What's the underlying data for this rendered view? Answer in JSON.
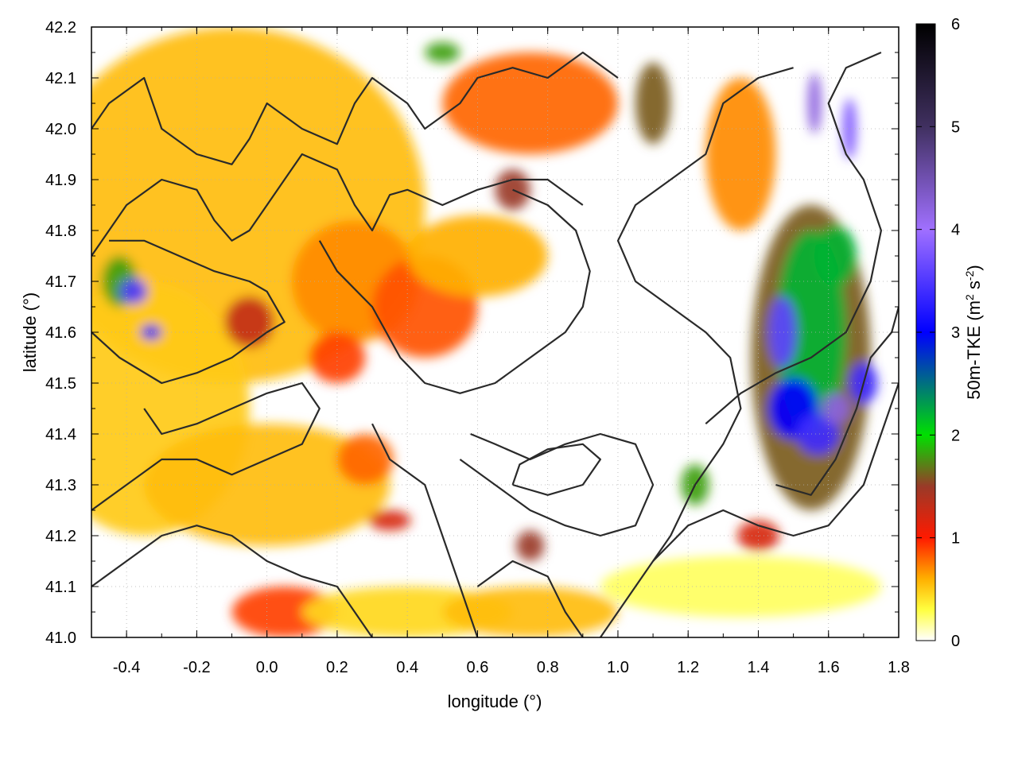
{
  "chart_data": {
    "type": "heatmap",
    "title": "",
    "xlabel": "longitude (°)",
    "ylabel": "latitude (°)",
    "xlim": [
      -0.5,
      1.8
    ],
    "ylim": [
      41.0,
      42.2
    ],
    "x_ticks": [
      "-0.4",
      "-0.2",
      "0.0",
      "0.2",
      "0.4",
      "0.6",
      "0.8",
      "1.0",
      "1.2",
      "1.4",
      "1.6",
      "1.8"
    ],
    "x_tick_values": [
      -0.4,
      -0.2,
      0.0,
      0.2,
      0.4,
      0.6,
      0.8,
      1.0,
      1.2,
      1.4,
      1.6,
      1.8
    ],
    "y_ticks": [
      "41.0",
      "41.1",
      "41.2",
      "41.3",
      "41.4",
      "41.5",
      "41.6",
      "41.7",
      "41.8",
      "41.9",
      "42.0",
      "42.1",
      "42.2"
    ],
    "y_tick_values": [
      41.0,
      41.1,
      41.2,
      41.3,
      41.4,
      41.5,
      41.6,
      41.7,
      41.8,
      41.9,
      42.0,
      42.1,
      42.2
    ],
    "grid": true,
    "colorbar": {
      "label_main": "50m-TKE (m",
      "label_sup1": "2",
      "label_mid": " s",
      "label_sup2": "-2",
      "label_end": ")",
      "range": [
        0,
        6
      ],
      "ticks": [
        "0",
        "1",
        "2",
        "3",
        "4",
        "5",
        "6"
      ],
      "tick_values": [
        0,
        1,
        2,
        3,
        4,
        5,
        6
      ],
      "colors": [
        {
          "v": 0.0,
          "c": "#ffffff"
        },
        {
          "v": 0.3,
          "c": "#ffff40"
        },
        {
          "v": 0.6,
          "c": "#ffb000"
        },
        {
          "v": 1.0,
          "c": "#ff1a00"
        },
        {
          "v": 1.5,
          "c": "#9a3a28"
        },
        {
          "v": 2.0,
          "c": "#00e000"
        },
        {
          "v": 3.0,
          "c": "#0000ff"
        },
        {
          "v": 4.0,
          "c": "#a070ff"
        },
        {
          "v": 5.0,
          "c": "#403060"
        },
        {
          "v": 6.0,
          "c": "#000000"
        }
      ]
    },
    "regions": [
      {
        "lon": -0.1,
        "lat": 41.85,
        "rlon": 0.55,
        "rlat": 0.35,
        "v": 0.55
      },
      {
        "lon": -0.35,
        "lat": 41.45,
        "rlon": 0.3,
        "rlat": 0.25,
        "v": 0.5
      },
      {
        "lon": 0.25,
        "lat": 41.7,
        "rlon": 0.18,
        "rlat": 0.12,
        "v": 0.7
      },
      {
        "lon": 0.45,
        "lat": 41.65,
        "rlon": 0.15,
        "rlat": 0.1,
        "v": 0.85
      },
      {
        "lon": 0.6,
        "lat": 41.75,
        "rlon": 0.2,
        "rlat": 0.08,
        "v": 0.6
      },
      {
        "lon": 0.0,
        "lat": 41.3,
        "rlon": 0.35,
        "rlat": 0.12,
        "v": 0.55
      },
      {
        "lon": 0.05,
        "lat": 41.05,
        "rlon": 0.15,
        "rlat": 0.05,
        "v": 0.9
      },
      {
        "lon": 0.2,
        "lat": 41.55,
        "rlon": 0.08,
        "rlat": 0.05,
        "v": 0.9
      },
      {
        "lon": -0.05,
        "lat": 41.62,
        "rlon": 0.07,
        "rlat": 0.05,
        "v": 1.3
      },
      {
        "lon": -0.42,
        "lat": 41.7,
        "rlon": 0.05,
        "rlat": 0.05,
        "v": 1.8
      },
      {
        "lon": -0.38,
        "lat": 41.68,
        "rlon": 0.04,
        "rlat": 0.025,
        "v": 3.5
      },
      {
        "lon": -0.33,
        "lat": 41.6,
        "rlon": 0.03,
        "rlat": 0.015,
        "v": 3.0
      },
      {
        "lon": 0.75,
        "lat": 42.05,
        "rlon": 0.25,
        "rlat": 0.1,
        "v": 0.8
      },
      {
        "lon": 1.1,
        "lat": 42.05,
        "rlon": 0.05,
        "rlat": 0.08,
        "v": 1.6
      },
      {
        "lon": 0.5,
        "lat": 42.15,
        "rlon": 0.05,
        "rlat": 0.02,
        "v": 1.8
      },
      {
        "lon": 0.7,
        "lat": 41.88,
        "rlon": 0.05,
        "rlat": 0.04,
        "v": 1.5
      },
      {
        "lon": 1.35,
        "lat": 41.95,
        "rlon": 0.1,
        "rlat": 0.15,
        "v": 0.7
      },
      {
        "lon": 1.55,
        "lat": 41.55,
        "rlon": 0.17,
        "rlat": 0.3,
        "v": 1.6
      },
      {
        "lon": 1.55,
        "lat": 41.6,
        "rlon": 0.1,
        "rlat": 0.2,
        "v": 2.2
      },
      {
        "lon": 1.5,
        "lat": 41.45,
        "rlon": 0.07,
        "rlat": 0.06,
        "v": 3.0
      },
      {
        "lon": 1.47,
        "lat": 41.6,
        "rlon": 0.04,
        "rlat": 0.07,
        "v": 3.6
      },
      {
        "lon": 1.57,
        "lat": 41.4,
        "rlon": 0.06,
        "rlat": 0.04,
        "v": 3.4
      },
      {
        "lon": 1.62,
        "lat": 41.45,
        "rlon": 0.04,
        "rlat": 0.03,
        "v": 4.2
      },
      {
        "lon": 1.56,
        "lat": 42.05,
        "rlon": 0.02,
        "rlat": 0.06,
        "v": 4.2
      },
      {
        "lon": 1.66,
        "lat": 42.0,
        "rlon": 0.02,
        "rlat": 0.06,
        "v": 3.8
      },
      {
        "lon": 1.62,
        "lat": 41.75,
        "rlon": 0.06,
        "rlat": 0.06,
        "v": 2.2
      },
      {
        "lon": 1.7,
        "lat": 41.5,
        "rlon": 0.04,
        "rlat": 0.04,
        "v": 3.4
      },
      {
        "lon": 1.22,
        "lat": 41.3,
        "rlon": 0.04,
        "rlat": 0.04,
        "v": 1.8
      },
      {
        "lon": 1.4,
        "lat": 41.2,
        "rlon": 0.06,
        "rlat": 0.03,
        "v": 1.2
      },
      {
        "lon": 0.35,
        "lat": 41.23,
        "rlon": 0.06,
        "rlat": 0.02,
        "v": 1.2
      },
      {
        "lon": 0.28,
        "lat": 41.35,
        "rlon": 0.08,
        "rlat": 0.05,
        "v": 0.8
      },
      {
        "lon": 0.75,
        "lat": 41.18,
        "rlon": 0.04,
        "rlat": 0.03,
        "v": 1.5
      },
      {
        "lon": 0.4,
        "lat": 41.05,
        "rlon": 0.3,
        "rlat": 0.05,
        "v": 0.45
      },
      {
        "lon": 0.75,
        "lat": 41.05,
        "rlon": 0.25,
        "rlat": 0.05,
        "v": 0.55
      },
      {
        "lon": 1.35,
        "lat": 41.1,
        "rlon": 0.4,
        "rlat": 0.06,
        "v": 0.25
      }
    ],
    "contours": [
      [
        [
          -0.5,
          42.0
        ],
        [
          -0.45,
          42.05
        ],
        [
          -0.35,
          42.1
        ],
        [
          -0.3,
          42.0
        ],
        [
          -0.2,
          41.95
        ],
        [
          -0.1,
          41.93
        ],
        [
          -0.05,
          41.98
        ],
        [
          0.0,
          42.05
        ],
        [
          0.1,
          42.0
        ],
        [
          0.2,
          41.97
        ],
        [
          0.25,
          42.05
        ],
        [
          0.3,
          42.1
        ],
        [
          0.4,
          42.05
        ],
        [
          0.45,
          42.0
        ],
        [
          0.55,
          42.05
        ],
        [
          0.6,
          42.1
        ],
        [
          0.7,
          42.12
        ],
        [
          0.8,
          42.1
        ],
        [
          0.9,
          42.15
        ],
        [
          1.0,
          42.1
        ]
      ],
      [
        [
          -0.5,
          41.75
        ],
        [
          -0.4,
          41.85
        ],
        [
          -0.3,
          41.9
        ],
        [
          -0.2,
          41.88
        ],
        [
          -0.15,
          41.82
        ],
        [
          -0.1,
          41.78
        ],
        [
          -0.05,
          41.8
        ],
        [
          0.0,
          41.85
        ],
        [
          0.05,
          41.9
        ],
        [
          0.1,
          41.95
        ],
        [
          0.2,
          41.92
        ],
        [
          0.25,
          41.85
        ],
        [
          0.3,
          41.8
        ],
        [
          0.35,
          41.87
        ],
        [
          0.4,
          41.88
        ],
        [
          0.5,
          41.85
        ],
        [
          0.6,
          41.88
        ],
        [
          0.7,
          41.9
        ],
        [
          0.8,
          41.9
        ],
        [
          0.9,
          41.85
        ]
      ],
      [
        [
          0.15,
          41.78
        ],
        [
          0.2,
          41.72
        ],
        [
          0.3,
          41.65
        ],
        [
          0.38,
          41.55
        ],
        [
          0.45,
          41.5
        ],
        [
          0.55,
          41.48
        ],
        [
          0.65,
          41.5
        ],
        [
          0.75,
          41.55
        ],
        [
          0.85,
          41.6
        ],
        [
          0.9,
          41.65
        ],
        [
          0.92,
          41.72
        ],
        [
          0.88,
          41.8
        ],
        [
          0.8,
          41.85
        ],
        [
          0.7,
          41.88
        ]
      ],
      [
        [
          -0.5,
          41.6
        ],
        [
          -0.42,
          41.55
        ],
        [
          -0.3,
          41.5
        ],
        [
          -0.2,
          41.52
        ],
        [
          -0.1,
          41.55
        ],
        [
          0.0,
          41.6
        ],
        [
          0.05,
          41.62
        ],
        [
          0.0,
          41.68
        ],
        [
          -0.05,
          41.7
        ],
        [
          -0.15,
          41.72
        ],
        [
          -0.25,
          41.75
        ],
        [
          -0.35,
          41.78
        ],
        [
          -0.45,
          41.78
        ]
      ],
      [
        [
          -0.5,
          41.25
        ],
        [
          -0.4,
          41.3
        ],
        [
          -0.3,
          41.35
        ],
        [
          -0.2,
          41.35
        ],
        [
          -0.1,
          41.32
        ],
        [
          0.0,
          41.35
        ],
        [
          0.1,
          41.38
        ],
        [
          0.15,
          41.45
        ],
        [
          0.1,
          41.5
        ],
        [
          0.0,
          41.48
        ],
        [
          -0.1,
          41.45
        ],
        [
          -0.2,
          41.42
        ],
        [
          -0.3,
          41.4
        ],
        [
          -0.35,
          41.45
        ]
      ],
      [
        [
          -0.5,
          41.1
        ],
        [
          -0.4,
          41.15
        ],
        [
          -0.3,
          41.2
        ],
        [
          -0.2,
          41.22
        ],
        [
          -0.1,
          41.2
        ],
        [
          0.0,
          41.15
        ],
        [
          0.1,
          41.12
        ],
        [
          0.2,
          41.1
        ],
        [
          0.25,
          41.05
        ],
        [
          0.3,
          41.0
        ]
      ],
      [
        [
          0.3,
          41.42
        ],
        [
          0.35,
          41.35
        ],
        [
          0.45,
          41.3
        ],
        [
          0.5,
          41.2
        ],
        [
          0.55,
          41.1
        ],
        [
          0.6,
          41.0
        ]
      ],
      [
        [
          0.55,
          41.35
        ],
        [
          0.65,
          41.3
        ],
        [
          0.75,
          41.25
        ],
        [
          0.85,
          41.22
        ],
        [
          0.95,
          41.2
        ],
        [
          1.05,
          41.22
        ],
        [
          1.1,
          41.3
        ],
        [
          1.05,
          41.38
        ],
        [
          0.95,
          41.4
        ],
        [
          0.85,
          41.38
        ],
        [
          0.75,
          41.35
        ],
        [
          0.65,
          41.38
        ],
        [
          0.58,
          41.4
        ]
      ],
      [
        [
          0.7,
          41.3
        ],
        [
          0.8,
          41.28
        ],
        [
          0.9,
          41.3
        ],
        [
          0.95,
          41.35
        ],
        [
          0.9,
          41.38
        ],
        [
          0.8,
          41.37
        ],
        [
          0.72,
          41.34
        ],
        [
          0.7,
          41.3
        ]
      ],
      [
        [
          0.95,
          41.0
        ],
        [
          1.05,
          41.1
        ],
        [
          1.15,
          41.2
        ],
        [
          1.22,
          41.3
        ],
        [
          1.3,
          41.38
        ],
        [
          1.35,
          41.45
        ],
        [
          1.32,
          41.55
        ],
        [
          1.25,
          41.6
        ],
        [
          1.15,
          41.65
        ],
        [
          1.05,
          41.7
        ],
        [
          1.0,
          41.78
        ],
        [
          1.05,
          41.85
        ],
        [
          1.15,
          41.9
        ],
        [
          1.25,
          41.95
        ],
        [
          1.3,
          42.05
        ],
        [
          1.4,
          42.1
        ],
        [
          1.5,
          42.12
        ]
      ],
      [
        [
          1.1,
          41.15
        ],
        [
          1.2,
          41.22
        ],
        [
          1.3,
          41.25
        ],
        [
          1.4,
          41.22
        ],
        [
          1.5,
          41.2
        ],
        [
          1.6,
          41.22
        ],
        [
          1.7,
          41.3
        ],
        [
          1.75,
          41.4
        ],
        [
          1.8,
          41.5
        ]
      ],
      [
        [
          1.25,
          41.42
        ],
        [
          1.35,
          41.48
        ],
        [
          1.45,
          41.52
        ],
        [
          1.55,
          41.55
        ],
        [
          1.65,
          41.6
        ],
        [
          1.72,
          41.7
        ],
        [
          1.75,
          41.8
        ],
        [
          1.7,
          41.9
        ],
        [
          1.65,
          41.95
        ],
        [
          1.6,
          42.05
        ],
        [
          1.65,
          42.12
        ],
        [
          1.75,
          42.15
        ]
      ],
      [
        [
          1.45,
          41.3
        ],
        [
          1.55,
          41.28
        ],
        [
          1.62,
          41.35
        ],
        [
          1.68,
          41.45
        ],
        [
          1.72,
          41.55
        ],
        [
          1.78,
          41.6
        ],
        [
          1.8,
          41.65
        ]
      ],
      [
        [
          0.6,
          41.1
        ],
        [
          0.7,
          41.15
        ],
        [
          0.8,
          41.12
        ],
        [
          0.85,
          41.05
        ],
        [
          0.9,
          41.0
        ]
      ]
    ]
  }
}
